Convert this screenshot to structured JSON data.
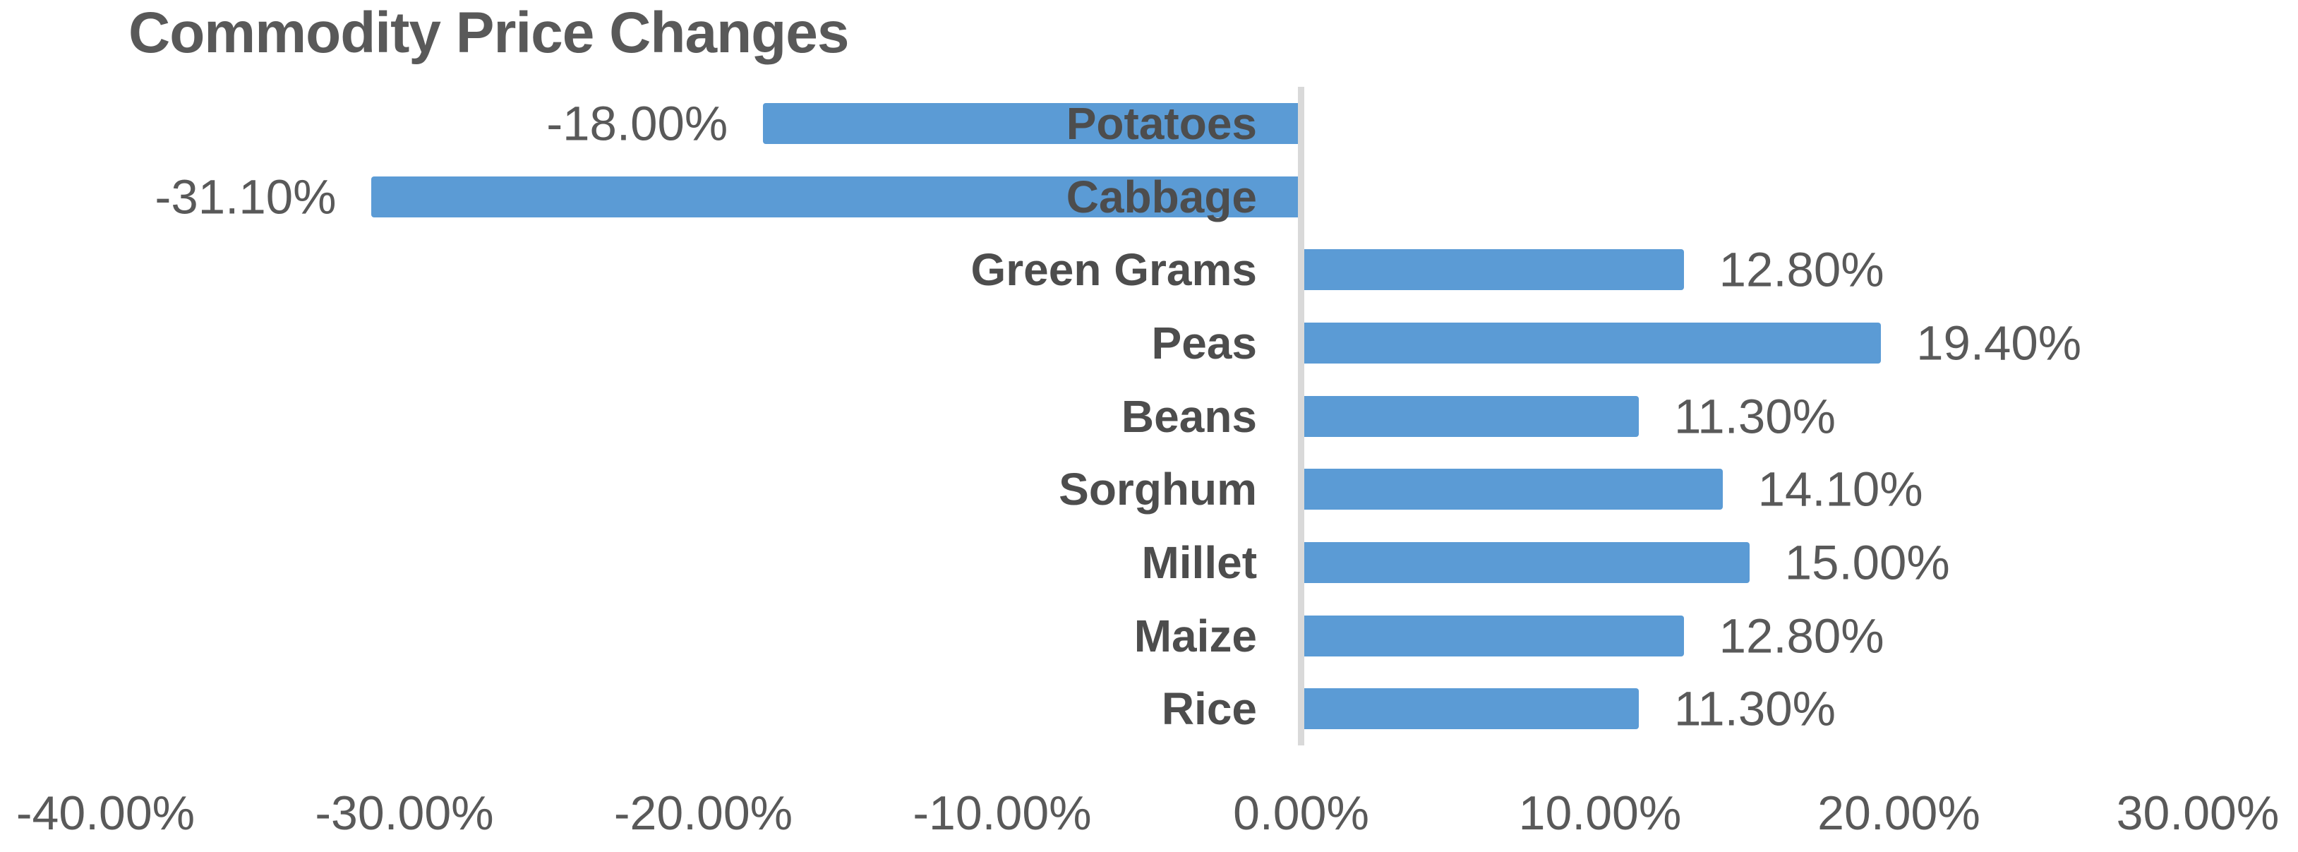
{
  "chart_data": {
    "type": "bar",
    "orientation": "horizontal",
    "title": "Commodity Price Changes",
    "categories": [
      "Potatoes",
      "Cabbage",
      "Green Grams",
      "Peas",
      "Beans",
      "Sorghum",
      "Millet",
      "Maize",
      "Rice"
    ],
    "values": [
      -18.0,
      -31.1,
      12.8,
      19.4,
      11.3,
      14.1,
      15.0,
      12.8,
      11.3
    ],
    "value_labels": [
      "-18.00%",
      "-31.10%",
      "12.80%",
      "19.40%",
      "11.30%",
      "14.10%",
      "15.00%",
      "12.80%",
      "11.30%"
    ],
    "x_tick_labels": [
      "-40.00%",
      "-30.00%",
      "-20.00%",
      "-10.00%",
      "0.00%",
      "10.00%",
      "20.00%",
      "30.00%"
    ],
    "x_tick_values": [
      -40,
      -30,
      -20,
      -10,
      0,
      10,
      20,
      30
    ],
    "xlim": [
      -40,
      30
    ],
    "xlabel": "",
    "ylabel": "",
    "grid": false,
    "legend_position": "none",
    "data_label_position": "outside-end",
    "category_label_position": "right-aligned-at-zero-axis",
    "bar_color": "#5B9BD5",
    "axis_line_color": "#D9D9D9",
    "text_color": "#595959",
    "title_color": "#595959"
  }
}
